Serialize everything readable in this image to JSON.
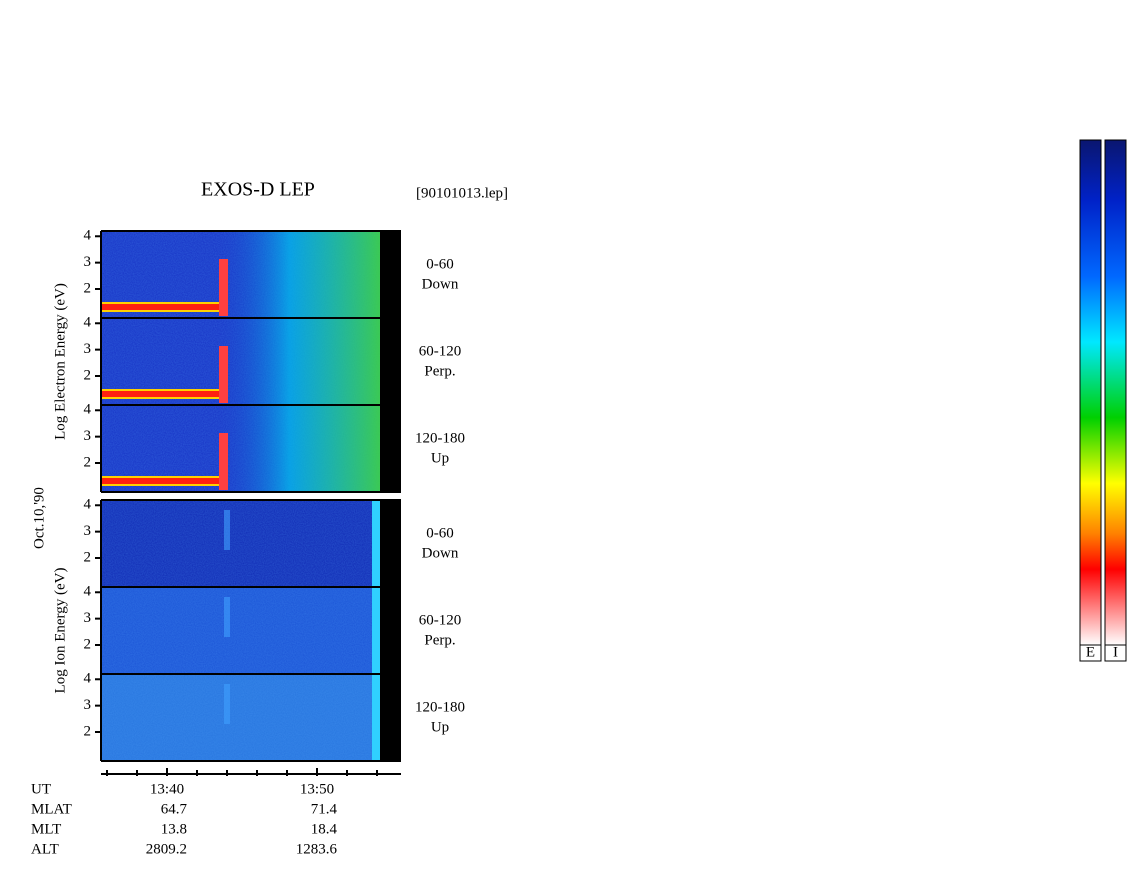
{
  "chart_data": {
    "type": "spectrogram",
    "title": "EXOS-D LEP",
    "file": "[90101013.lep]",
    "date": "Oct.10,'90",
    "groups": [
      {
        "ylabel": "Log Electron Energy (eV)",
        "panels": [
          {
            "angle": "0-60",
            "direction": "Down"
          },
          {
            "angle": "60-120",
            "direction": "Perp."
          },
          {
            "angle": "120-180",
            "direction": "Up"
          }
        ]
      },
      {
        "ylabel": "Log Ion Energy (eV)",
        "panels": [
          {
            "angle": "0-60",
            "direction": "Down"
          },
          {
            "angle": "60-120",
            "direction": "Perp."
          },
          {
            "angle": "120-180",
            "direction": "Up"
          }
        ]
      }
    ],
    "ylim": [
      0.9,
      4.2
    ],
    "yticks": [
      2,
      3,
      4
    ],
    "xlim": [
      815.6,
      835.6
    ],
    "xticks": [
      {
        "value": 820,
        "label": "13:40"
      },
      {
        "value": 830,
        "label": "13:50"
      }
    ],
    "minor_xticks": [
      816,
      818,
      820,
      822,
      824,
      826,
      828,
      830,
      832,
      834
    ],
    "ut_label": "UT",
    "ephemeris": [
      {
        "label": "MLAT",
        "values": [
          "64.7",
          "71.4"
        ]
      },
      {
        "label": "MLT",
        "values": [
          "13.8",
          "18.4"
        ]
      },
      {
        "label": "ALT",
        "values": [
          "2809.2",
          "1283.6"
        ]
      }
    ],
    "colorbars": [
      "E",
      "I"
    ]
  }
}
